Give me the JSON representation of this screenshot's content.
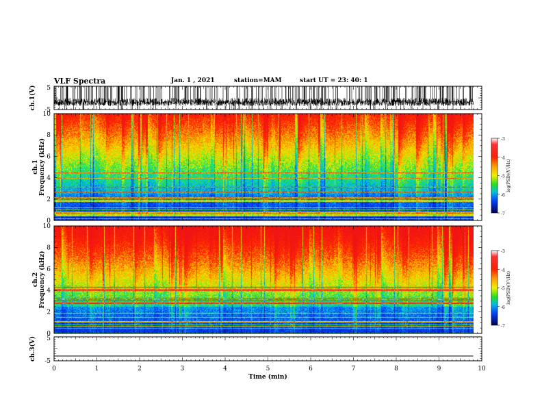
{
  "header": {
    "title": "VLF Spectra",
    "date": "Jan. 1 , 2021",
    "station": "station=MAM",
    "start_ut": "start UT = 23: 40: 1"
  },
  "chart_data": [
    {
      "type": "line",
      "panel": "ch1-waveform",
      "ylabel": "ch.1(V)",
      "yticks": [
        "5",
        "-5"
      ],
      "ylim": [
        -5,
        5
      ],
      "xlim": [
        0,
        10
      ],
      "x_data_range": [
        0,
        9.8
      ],
      "color": "#000000",
      "description_values": {
        "baseline_v": -2.5,
        "peak_v": 5
      }
    },
    {
      "type": "heatmap",
      "panel": "ch1-spectrogram",
      "ylabel": "ch.1\nFrequency (kHz)",
      "ylabel_lines": [
        "ch.1",
        "Frequency (kHz)"
      ],
      "yticks": [
        "0",
        "2",
        "4",
        "6",
        "8",
        "10"
      ],
      "ylim": [
        0,
        10
      ],
      "xlim": [
        0,
        10
      ],
      "x_data_range": [
        0,
        9.8
      ],
      "colorbar": {
        "label": "log(PSD)(V²/Hz)",
        "ticks": [
          "-3",
          "-4",
          "-5",
          "-6",
          "-7"
        ],
        "range": [
          -7,
          -3
        ]
      }
    },
    {
      "type": "heatmap",
      "panel": "ch2-spectrogram",
      "ylabel": "ch.2\nFrequency (kHz)",
      "ylabel_lines": [
        "ch.2",
        "Frequency (kHz)"
      ],
      "yticks": [
        "0",
        "2",
        "4",
        "6",
        "8",
        "10"
      ],
      "ylim": [
        0,
        10
      ],
      "xlim": [
        0,
        10
      ],
      "x_data_range": [
        0,
        9.8
      ],
      "colorbar": {
        "label": "log(PSD)(V²/Hz)",
        "ticks": [
          "-3",
          "-4",
          "-5",
          "-6",
          "-7"
        ],
        "range": [
          -7,
          -3
        ]
      }
    },
    {
      "type": "line",
      "panel": "ch3-waveform",
      "ylabel": "ch.3(V)",
      "yticks": [
        "5",
        "-5"
      ],
      "ylim": [
        -5,
        5
      ],
      "xlim": [
        0,
        10
      ],
      "x": [
        0,
        9.8
      ],
      "y": [
        -3,
        -3
      ],
      "color": "#000000",
      "xlabel": "Time (min)",
      "xticks": [
        "0",
        "1",
        "2",
        "3",
        "4",
        "5",
        "6",
        "7",
        "8",
        "9",
        "10"
      ]
    }
  ]
}
